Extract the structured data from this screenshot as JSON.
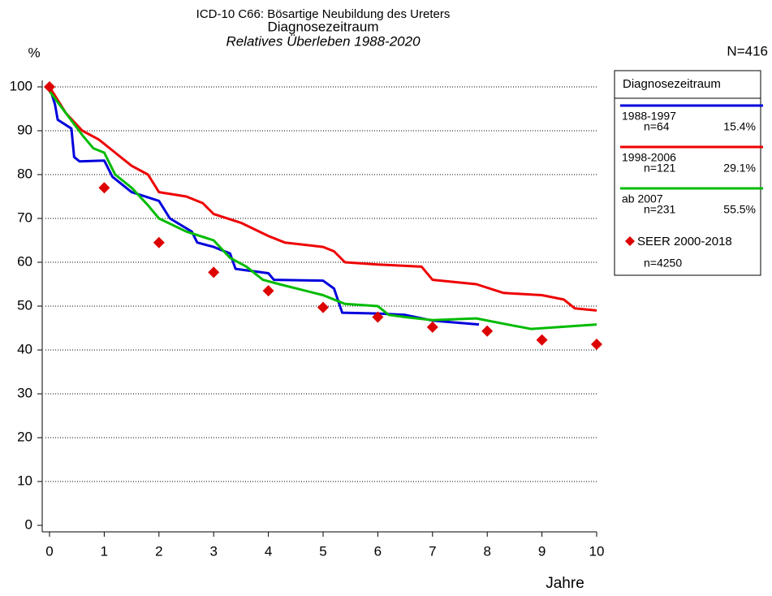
{
  "chart_data": {
    "type": "line",
    "title": "ICD-10 C66: Bösartige Neubildung des Ureters",
    "subtitle": "Diagnosezeitraum",
    "subtitle2": "Relatives Überleben 1988-2020",
    "y_label": "%",
    "x_label": "Jahre",
    "total": "N=416",
    "legend_title": "Diagnosezeitraum",
    "xlim": [
      0,
      10
    ],
    "ylim": [
      0,
      100
    ],
    "xticks": [
      0,
      1,
      2,
      3,
      4,
      5,
      6,
      7,
      8,
      9,
      10
    ],
    "yticks": [
      0,
      10,
      20,
      30,
      40,
      50,
      60,
      70,
      80,
      90,
      100
    ],
    "grid": true,
    "series": [
      {
        "name": "1988-1997",
        "n": "n=64",
        "share": "15.4%",
        "color": "#0000dd",
        "style": "line",
        "x": [
          0,
          0.1,
          0.15,
          0.4,
          0.45,
          0.55,
          1.0,
          1.15,
          1.5,
          2.0,
          2.2,
          2.6,
          2.7,
          3.0,
          3.3,
          3.4,
          4.0,
          4.1,
          5.0,
          5.2,
          5.35,
          6.0,
          6.5,
          7.0,
          7.85
        ],
        "values": [
          100,
          96,
          92.5,
          90.5,
          84,
          83,
          83.2,
          79.5,
          76,
          74,
          70,
          67,
          64.5,
          63.5,
          62,
          58.5,
          57.5,
          56,
          55.8,
          54,
          48.5,
          48.3,
          48,
          46.7,
          45.8
        ]
      },
      {
        "name": "1998-2006",
        "n": "n=121",
        "share": "29.1%",
        "color": "#ee0000",
        "style": "line",
        "x": [
          0,
          0.1,
          0.3,
          0.6,
          0.9,
          1.2,
          1.5,
          1.8,
          2.0,
          2.5,
          2.8,
          3.0,
          3.5,
          4.0,
          4.3,
          5.0,
          5.2,
          5.4,
          6.0,
          6.8,
          7.0,
          7.8,
          8.3,
          9.0,
          9.4,
          9.6,
          10
        ],
        "values": [
          100,
          98,
          94,
          90,
          88,
          85,
          82,
          80,
          76,
          75,
          73.5,
          71,
          69,
          66,
          64.5,
          63.5,
          62.5,
          60,
          59.5,
          59,
          56,
          55,
          53,
          52.5,
          51.5,
          49.5,
          49
        ]
      },
      {
        "name": "ab 2007",
        "n": "n=231",
        "share": "55.5%",
        "color": "#00bb00",
        "style": "line",
        "x": [
          0,
          0.3,
          0.6,
          0.8,
          1.0,
          1.2,
          1.5,
          1.8,
          2.0,
          2.5,
          3.0,
          3.3,
          3.6,
          3.9,
          4.2,
          5.0,
          5.4,
          6.0,
          6.2,
          6.5,
          7.0,
          7.8,
          8.5,
          8.8,
          10
        ],
        "values": [
          99,
          94,
          89,
          86,
          85,
          80,
          77,
          73,
          70,
          67,
          65,
          61,
          59,
          56,
          55,
          52.5,
          50.5,
          50,
          48,
          47.5,
          46.8,
          47.2,
          45.5,
          44.8,
          45.8
        ]
      },
      {
        "name": "SEER 2000-2018",
        "n": "n=4250",
        "color": "#dd0000",
        "style": "marker",
        "x": [
          0,
          1,
          2,
          3,
          4,
          5,
          6,
          7,
          8,
          9,
          10
        ],
        "values": [
          100,
          77,
          64.5,
          57.7,
          53.5,
          49.7,
          47.5,
          45.2,
          44.3,
          42.3,
          41.3
        ]
      }
    ]
  }
}
